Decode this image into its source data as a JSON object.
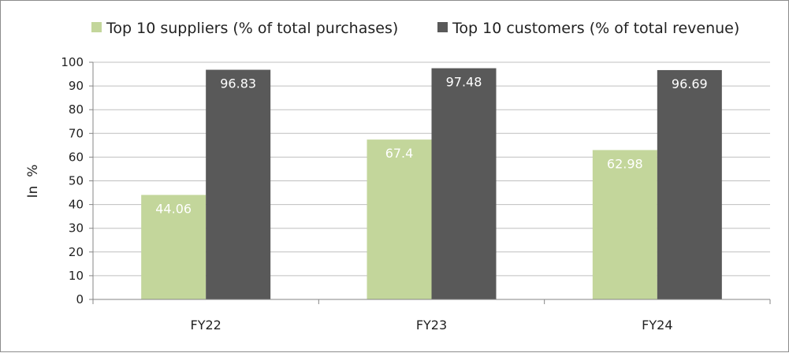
{
  "chart_data": {
    "type": "bar",
    "categories": [
      "FY22",
      "FY23",
      "FY24"
    ],
    "series": [
      {
        "name": "Top 10 suppliers (% of total purchases)",
        "values": [
          44.06,
          67.4,
          62.98
        ],
        "labels": [
          "44.06",
          "67.4",
          "62.98"
        ],
        "color": "#c3d69b"
      },
      {
        "name": "Top 10 customers (% of total revenue)",
        "values": [
          96.83,
          97.48,
          96.69
        ],
        "labels": [
          "96.83",
          "97.48",
          "96.69"
        ],
        "color": "#595959"
      }
    ],
    "title": "",
    "xlabel": "",
    "ylabel": "In  %",
    "ylim": [
      0,
      100
    ],
    "yticks": [
      0,
      10,
      20,
      30,
      40,
      50,
      60,
      70,
      80,
      90,
      100
    ],
    "grid": true,
    "legend": "top",
    "grid_color": "#bfbfbf",
    "axis_color": "#868686"
  }
}
